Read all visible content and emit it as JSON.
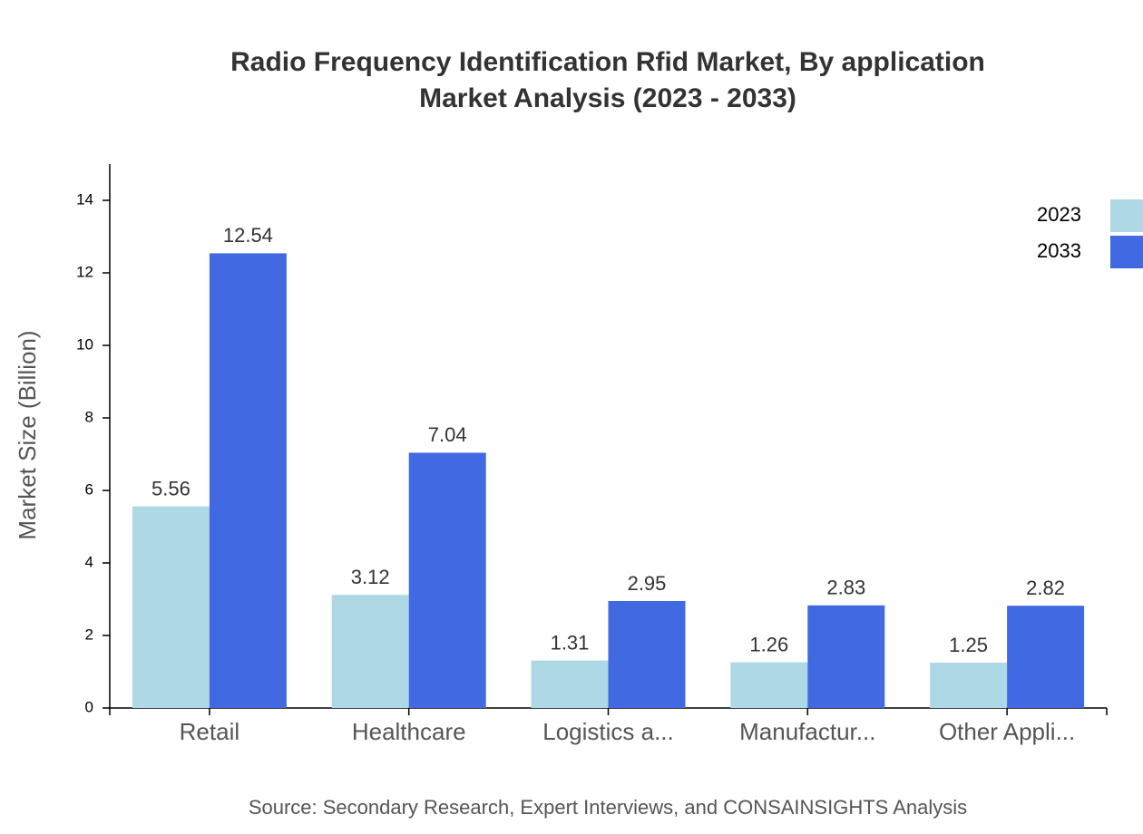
{
  "chart_data": {
    "type": "bar",
    "title": "Radio Frequency Identification Rfid Market, By application",
    "subtitle": "Market Analysis (2023 - 2033)",
    "y_label": "Market Size (Billion)",
    "source": "Source: Secondary Research, Expert Interviews, and CONSAINSIGHTS Analysis",
    "categories": [
      "Retail",
      "Healthcare",
      "Logistics a...",
      "Manufactur...",
      "Other Appli..."
    ],
    "series": [
      {
        "name": "2023",
        "color": "#add8e6",
        "values": [
          5.56,
          3.12,
          1.31,
          1.26,
          1.25
        ]
      },
      {
        "name": "2033",
        "color": "#4169e1",
        "values": [
          12.54,
          7.04,
          2.95,
          2.83,
          2.82
        ]
      }
    ],
    "ylim": [
      0,
      15
    ],
    "yticks": [
      0,
      2,
      4,
      6,
      8,
      10,
      12,
      14
    ],
    "legend": "top-right"
  }
}
